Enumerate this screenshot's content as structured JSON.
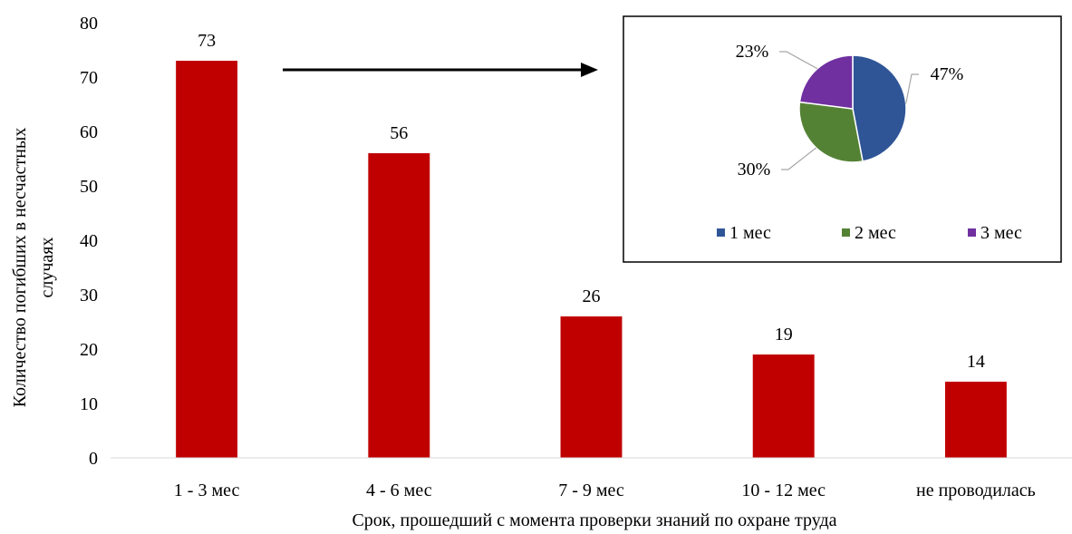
{
  "chart_data": [
    {
      "type": "bar",
      "title": "",
      "xlabel": "Срок, прошедший с момента проверки знаний по охране труда",
      "ylabel_lines": [
        "Количество погибших в несчастных",
        "случаях"
      ],
      "categories": [
        "1 - 3 мес",
        "4 - 6 мес",
        "7 - 9 мес",
        "10 - 12 мес",
        "не проводилась"
      ],
      "values": [
        73,
        56,
        26,
        19,
        14
      ],
      "ylim": [
        0,
        80
      ],
      "yticks": [
        0,
        10,
        20,
        30,
        40,
        50,
        60,
        70,
        80
      ],
      "grid": false,
      "bar_color": "#c00000",
      "data_labels": true
    },
    {
      "type": "pie",
      "title": "",
      "labels": [
        "1 мес",
        "2 мес",
        "3 мес"
      ],
      "values": [
        47,
        30,
        23
      ],
      "value_labels": [
        "47%",
        "30%",
        "23%"
      ],
      "colors": [
        "#2f5597",
        "#548235",
        "#7030a0"
      ],
      "legend": "bottom"
    }
  ]
}
